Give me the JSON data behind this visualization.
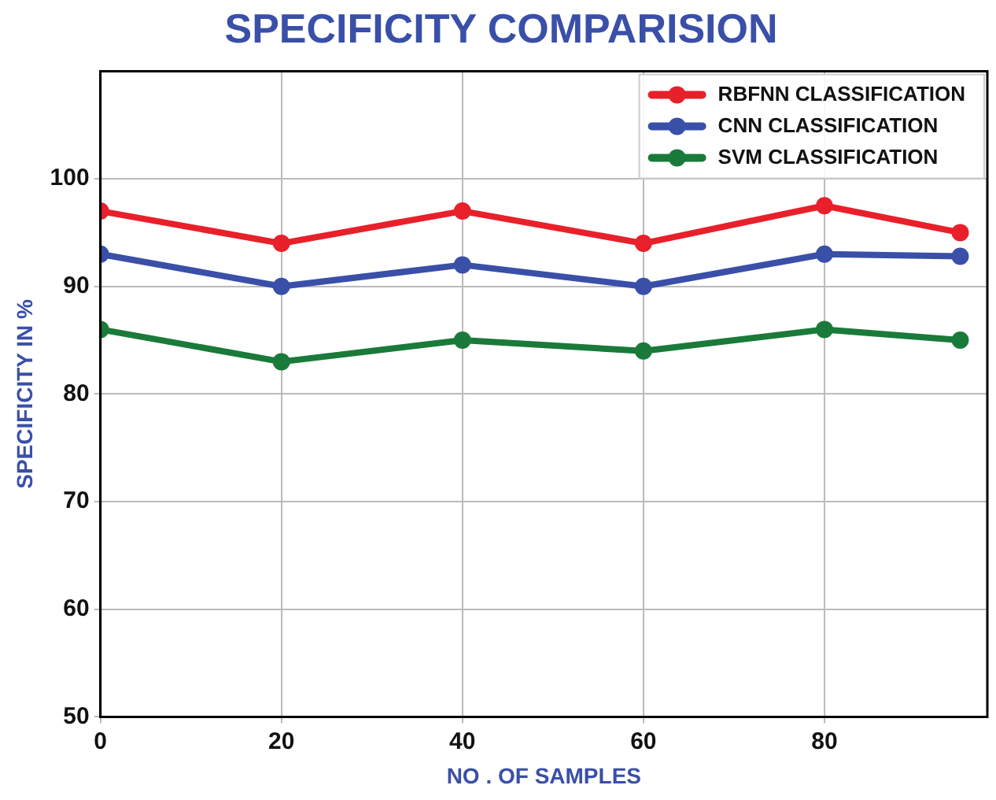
{
  "chart_data": {
    "type": "line",
    "title": "SPECIFICITY COMPARISION",
    "xlabel": "NO . OF SAMPLES",
    "ylabel": "SPECIFICITY IN %",
    "x": [
      0,
      20,
      40,
      60,
      80,
      95
    ],
    "series": [
      {
        "name": "RBFNN CLASSIFICATION",
        "color": "#e8202a",
        "values": [
          97,
          94,
          97,
          94,
          97.5,
          95
        ]
      },
      {
        "name": "CNN CLASSIFICATION",
        "color": "#3a4fa8",
        "values": [
          93,
          90,
          92,
          90,
          93,
          92.8
        ]
      },
      {
        "name": "SVM CLASSIFICATION",
        "color": "#1a7a3a",
        "values": [
          86,
          83,
          85,
          84,
          86,
          85
        ]
      }
    ],
    "xlim": [
      0,
      98
    ],
    "xticks": [
      0,
      20,
      40,
      60,
      80
    ],
    "ylim": [
      50,
      110
    ],
    "yticks": [
      50,
      60,
      70,
      80,
      90,
      100
    ],
    "grid": true,
    "legend": "top right",
    "marker": "circle",
    "line_style": "solid"
  }
}
